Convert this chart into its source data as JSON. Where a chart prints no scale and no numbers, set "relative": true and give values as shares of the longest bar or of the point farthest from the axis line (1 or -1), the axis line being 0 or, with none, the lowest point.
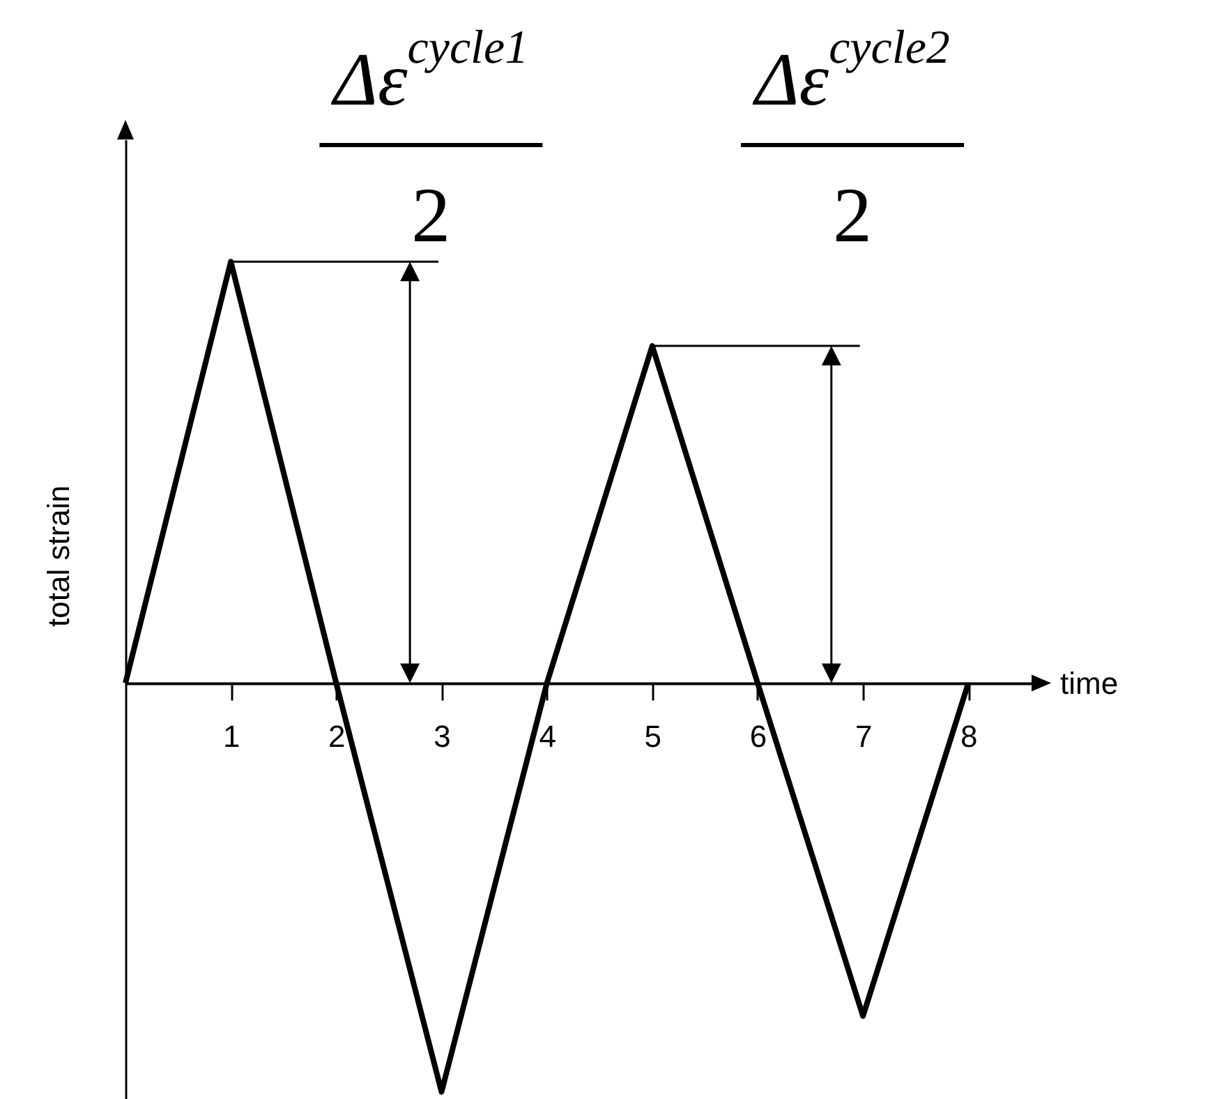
{
  "chart_data": {
    "type": "line",
    "relative": true,
    "xlabel": "time",
    "ylabel": "total strain",
    "x": [
      0,
      1,
      2,
      3,
      4,
      5,
      6,
      7,
      8
    ],
    "series": [
      {
        "color": "#000000",
        "values": [
          0,
          1,
          0,
          -0.97,
          0,
          0.8,
          0,
          -0.79,
          0
        ]
      }
    ],
    "xlim": [
      0,
      8.6
    ],
    "xticks": [
      1,
      2,
      3,
      4,
      5,
      6,
      7,
      8
    ],
    "marker": "none",
    "line_style": "solid",
    "grid": false,
    "annotations": [
      "Δε$^{cycle1}$",
      "2",
      "Δε$^{cycle2}$",
      "2"
    ]
  }
}
